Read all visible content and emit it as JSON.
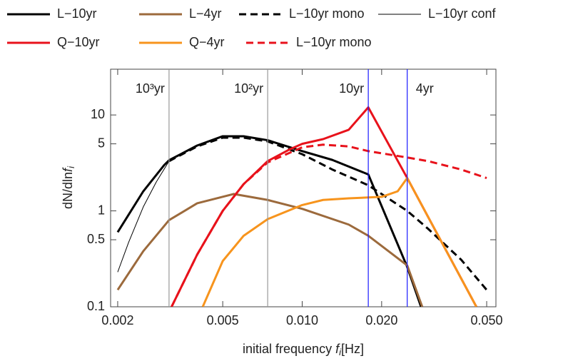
{
  "chart_data": {
    "type": "line",
    "xlabel": [
      "initial frequency ",
      "f",
      "i",
      "[Hz]"
    ],
    "ylabel": [
      "dN/dln",
      "f",
      "i"
    ],
    "xlog": true,
    "ylog": true,
    "xlim": [
      0.00188,
      0.0542
    ],
    "ylim": [
      0.1,
      30
    ],
    "xticks": [
      0.002,
      0.005,
      {
        "value": 0.01,
        "label": "0.010"
      },
      {
        "value": 0.02,
        "label": "0.020"
      },
      {
        "value": 0.05,
        "label": "0.050"
      }
    ],
    "yticks": [
      0.1,
      0.5,
      1,
      5,
      10
    ],
    "vlines": [
      {
        "x": 0.00313,
        "label": "10³yr",
        "color": "#999999"
      },
      {
        "x": 0.0074,
        "label": "10²yr",
        "color": "#999999"
      },
      {
        "x": 0.0178,
        "label": "10yr",
        "color": "#1a1aff"
      },
      {
        "x": 0.025,
        "label": "4yr",
        "color": "#1a1aff"
      }
    ],
    "series": [
      {
        "name": "L−10yr",
        "color": "#000000",
        "width": 3,
        "dash": false,
        "x": [
          0.002,
          0.0025,
          0.003,
          0.00313,
          0.004,
          0.005,
          0.006,
          0.0074,
          0.01,
          0.013,
          0.0178,
          0.025,
          0.0282
        ],
        "values": [
          0.6,
          1.6,
          3.0,
          3.37,
          4.8,
          6.0,
          6.0,
          5.45,
          4.2,
          3.4,
          2.4,
          0.26,
          0.1
        ]
      },
      {
        "name": "L−4yr",
        "color": "#9c6a3c",
        "width": 3,
        "dash": false,
        "x": [
          0.002,
          0.0025,
          0.00313,
          0.004,
          0.0055,
          0.0074,
          0.01,
          0.015,
          0.0178,
          0.025,
          0.0285
        ],
        "values": [
          0.15,
          0.38,
          0.8,
          1.2,
          1.5,
          1.3,
          1.05,
          0.72,
          0.55,
          0.27,
          0.1
        ]
      },
      {
        "name": "L−10yr mono",
        "color": "#000000",
        "width": 3,
        "dash": true,
        "x": [
          0.00313,
          0.004,
          0.005,
          0.006,
          0.0074,
          0.01,
          0.013,
          0.0178,
          0.025,
          0.03,
          0.04,
          0.05
        ],
        "values": [
          3.3,
          4.7,
          5.8,
          5.8,
          5.3,
          3.9,
          2.7,
          1.85,
          1.0,
          0.65,
          0.31,
          0.15
        ]
      },
      {
        "name": "L−10yr conf",
        "color": "#000000",
        "width": 1,
        "dash": false,
        "x": [
          0.002,
          0.0022,
          0.0025,
          0.0028,
          0.00313,
          0.004
        ],
        "values": [
          0.23,
          0.47,
          1.1,
          2.0,
          3.3,
          4.8
        ]
      },
      {
        "name": "Q−10yr",
        "color": "#e8121b",
        "width": 3,
        "dash": false,
        "x": [
          0.0032,
          0.004,
          0.005,
          0.006,
          0.0074,
          0.009,
          0.01,
          0.012,
          0.015,
          0.0178,
          0.025,
          0.0457
        ],
        "values": [
          0.1,
          0.35,
          1.0,
          1.9,
          3.3,
          4.4,
          5.0,
          5.6,
          7.0,
          12.0,
          2.2,
          0.1
        ]
      },
      {
        "name": "Q−4yr",
        "color": "#f7941d",
        "width": 3,
        "dash": false,
        "x": [
          0.0042,
          0.005,
          0.006,
          0.0074,
          0.01,
          0.012,
          0.015,
          0.02,
          0.023,
          0.025,
          0.0457
        ],
        "values": [
          0.1,
          0.3,
          0.55,
          0.82,
          1.15,
          1.3,
          1.35,
          1.4,
          1.6,
          2.2,
          0.1
        ]
      },
      {
        "name": "L−10yr mono",
        "color": "#e8121b",
        "width": 3,
        "dash": true,
        "x": [
          0.0032,
          0.004,
          0.005,
          0.006,
          0.0074,
          0.01,
          0.012,
          0.015,
          0.0178,
          0.025,
          0.03,
          0.04,
          0.05
        ],
        "values": [
          0.1,
          0.35,
          1.0,
          1.9,
          3.2,
          4.6,
          4.9,
          4.7,
          4.2,
          3.6,
          3.3,
          2.7,
          2.2
        ]
      }
    ]
  }
}
